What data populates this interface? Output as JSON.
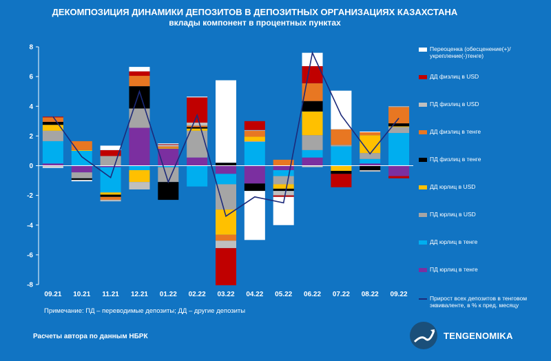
{
  "header": {
    "title": "ДЕКОМПОЗИЦИЯ ДИНАМИКИ ДЕПОЗИТОВ В ДЕПОЗИТНЫХ ОРГАНИЗАЦИЯХ КАЗАХСТАНА",
    "subtitle": "вклады компонент в процентных пунктах"
  },
  "footer": {
    "note": "Примечание: ПД – переводимые депозиты; ДД – другие депозиты",
    "source": "Расчеты автора по данным НБРК",
    "brand": "TENGENOMIKA"
  },
  "chart_data": {
    "type": "bar",
    "stacked": true,
    "categories": [
      "09.21",
      "10.21",
      "11.21",
      "12.21",
      "01.22",
      "02.22",
      "03.22",
      "04.22",
      "05.22",
      "06.22",
      "07.22",
      "08.22",
      "09.22"
    ],
    "ylim": [
      -8,
      8
    ],
    "yticks": [
      -8,
      -6,
      -4,
      -2,
      0,
      2,
      4,
      6,
      8
    ],
    "grid": false,
    "legend_position": "right",
    "series": [
      {
        "name": "ПД юрлиц в тенге",
        "color": "#7b2fa0",
        "values": [
          0.15,
          -0.45,
          -0.1,
          2.55,
          1.15,
          0.55,
          -0.55,
          -1.2,
          -0.3,
          0.55,
          0.0,
          0.15,
          -0.7
        ]
      },
      {
        "name": "ДД юрлиц в тенге",
        "color": "#00aeef",
        "values": [
          1.5,
          1.0,
          -1.7,
          -0.3,
          -0.1,
          -1.4,
          -0.7,
          1.6,
          -0.4,
          0.5,
          1.3,
          0.3,
          2.2
        ]
      },
      {
        "name": "ПД юрлиц в USD",
        "color": "#a5a5a5",
        "values": [
          0.7,
          -0.4,
          0.65,
          1.3,
          -1.0,
          1.8,
          -1.7,
          0.05,
          -0.55,
          1.0,
          0.1,
          0.4,
          0.4
        ]
      },
      {
        "name": "ДД юрлиц в USD",
        "color": "#ffc000",
        "values": [
          0.4,
          0.05,
          -0.15,
          -0.8,
          0.05,
          0.15,
          -1.7,
          0.3,
          -0.3,
          1.6,
          -0.35,
          1.2,
          0.05
        ]
      },
      {
        "name": "ПД физлиц в тенге",
        "color": "#000000",
        "values": [
          0.2,
          -0.1,
          -0.15,
          1.5,
          -1.2,
          0.1,
          0.2,
          -0.5,
          -0.15,
          0.7,
          -0.2,
          -0.3,
          0.2
        ]
      },
      {
        "name": "ДД физлиц в тенге",
        "color": "#e87722",
        "values": [
          0.3,
          0.6,
          -0.2,
          0.7,
          0.1,
          0.1,
          -0.4,
          0.4,
          0.4,
          1.2,
          1.05,
          0.2,
          1.1
        ]
      },
      {
        "name": "ПД физлиц в USD",
        "color": "#bfbfbf",
        "values": [
          -0.1,
          -0.05,
          -0.1,
          -0.5,
          0.1,
          0.2,
          -0.5,
          0.05,
          -0.3,
          -0.1,
          0.0,
          -0.1,
          0.05
        ]
      },
      {
        "name": "ДД физлиц в USD",
        "color": "#c00000",
        "values": [
          0.05,
          0.0,
          0.4,
          0.3,
          0.05,
          1.7,
          -2.5,
          0.6,
          -0.1,
          1.15,
          -0.9,
          0.0,
          -0.15
        ]
      },
      {
        "name": "Переоценка (обесценение(+)/укрепление(-)тенге)",
        "color": "#ffffff",
        "values": [
          -0.05,
          -0.05,
          0.3,
          0.3,
          0.05,
          0.05,
          5.55,
          -3.3,
          -1.9,
          0.9,
          2.6,
          0.05,
          0.0
        ]
      }
    ],
    "line": {
      "name": "Прирост всех депозитов в тенговом эквиваленте, в % к пред. месяцу",
      "color": "#1c2a7a",
      "values": [
        3.3,
        0.6,
        -0.8,
        5.0,
        -1.1,
        3.4,
        -3.4,
        -2.1,
        -2.5,
        7.6,
        3.4,
        0.8,
        3.2
      ]
    }
  }
}
